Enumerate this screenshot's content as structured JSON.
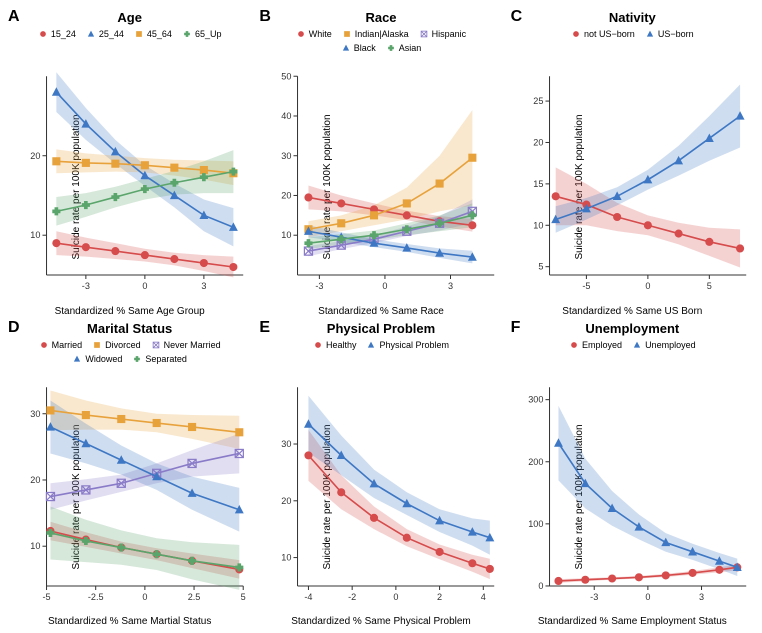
{
  "layout": {
    "rows": 2,
    "cols": 3
  },
  "common": {
    "ylabel": "Suicide rate per 100K population",
    "background_color": "#ffffff",
    "axis_color": "#333333",
    "title_fontsize": 13,
    "label_fontsize": 10,
    "tick_fontsize": 9,
    "legend_fontsize": 9,
    "line_width": 1.6,
    "marker_size": 4,
    "ribbon_opacity": 0.25,
    "colors": {
      "red": "#d64b4b",
      "blue": "#3e78c4",
      "orange": "#e8a23c",
      "green": "#5aa56b",
      "purple": "#8a7bc8"
    },
    "markers": {
      "circle": "●",
      "triangle": "▲",
      "square": "■",
      "cross": "✚",
      "boxcross": "⊠"
    }
  },
  "panels": [
    {
      "letter": "A",
      "title": "Age",
      "xlabel": "Standardized % Same Age Group",
      "xlim": [
        -5,
        5
      ],
      "xticks": [
        -3,
        0,
        3
      ],
      "ylim": [
        5,
        30
      ],
      "yticks": [
        10,
        20
      ],
      "series": [
        {
          "name": "15_24",
          "color": "red",
          "marker": "circle",
          "x": [
            -4.5,
            -3,
            -1.5,
            0,
            1.5,
            3,
            4.5
          ],
          "y": [
            9,
            8.5,
            8,
            7.5,
            7,
            6.5,
            6
          ],
          "ribbon": [
            1.5,
            1.2,
            1,
            0.8,
            0.8,
            1,
            1.3
          ]
        },
        {
          "name": "25_44",
          "color": "blue",
          "marker": "triangle",
          "x": [
            -4.5,
            -3,
            -1.5,
            0,
            1.5,
            3,
            4.5
          ],
          "y": [
            28,
            24,
            20.5,
            17.5,
            15,
            12.5,
            11
          ],
          "ribbon": [
            2.5,
            2,
            1.5,
            1.3,
            1.5,
            2,
            2.4
          ]
        },
        {
          "name": "45_64",
          "color": "orange",
          "marker": "square",
          "x": [
            -4.5,
            -3,
            -1.5,
            0,
            1.5,
            3,
            4.5
          ],
          "y": [
            19.3,
            19.1,
            19,
            18.8,
            18.5,
            18.2,
            17.8
          ],
          "ribbon": [
            1.5,
            1.2,
            1,
            0.9,
            1,
            1.2,
            1.5
          ]
        },
        {
          "name": "65_Up",
          "color": "green",
          "marker": "cross",
          "x": [
            -4.5,
            -3,
            -1.5,
            0,
            1.5,
            3,
            4.5
          ],
          "y": [
            13,
            13.8,
            14.8,
            15.8,
            16.6,
            17.3,
            18
          ],
          "ribbon": [
            1.8,
            1.5,
            1.3,
            1.3,
            1.5,
            2,
            2.7
          ]
        }
      ]
    },
    {
      "letter": "B",
      "title": "Race",
      "xlabel": "Standardized % Same Race",
      "xlim": [
        -4,
        5
      ],
      "xticks": [
        -3,
        0,
        3
      ],
      "ylim": [
        0,
        50
      ],
      "yticks": [
        10,
        20,
        30,
        40,
        50
      ],
      "series": [
        {
          "name": "White",
          "color": "red",
          "marker": "circle",
          "x": [
            -3.5,
            -2,
            -0.5,
            1,
            2.5,
            4
          ],
          "y": [
            19.5,
            18,
            16.5,
            15,
            13.5,
            12.5
          ],
          "ribbon": [
            3,
            2,
            1.5,
            1.2,
            1.3,
            1.6
          ]
        },
        {
          "name": "Indian|Alaska",
          "color": "orange",
          "marker": "square",
          "x": [
            -3.5,
            -2,
            -0.5,
            1,
            2.5,
            4
          ],
          "y": [
            11.5,
            13,
            15,
            18,
            23,
            29.5
          ],
          "ribbon": [
            2,
            2,
            2.5,
            4,
            7,
            12
          ]
        },
        {
          "name": "Hispanic",
          "color": "purple",
          "marker": "boxcross",
          "x": [
            -3.5,
            -2,
            -0.5,
            1,
            2.5,
            4
          ],
          "y": [
            6,
            7.5,
            9,
            11,
            13,
            16
          ],
          "ribbon": [
            1.3,
            1,
            1,
            1.2,
            1.8,
            3
          ]
        },
        {
          "name": "Black",
          "color": "blue",
          "marker": "triangle",
          "x": [
            -3.5,
            -2,
            -0.5,
            1,
            2.5,
            4
          ],
          "y": [
            11,
            9.5,
            8,
            6.8,
            5.5,
            4.5
          ],
          "ribbon": [
            1.5,
            1.2,
            1,
            1,
            1.2,
            1.6
          ]
        },
        {
          "name": "Asian",
          "color": "green",
          "marker": "cross",
          "x": [
            -3.5,
            -2,
            -0.5,
            1,
            2.5,
            4
          ],
          "y": [
            8,
            9,
            10,
            11.5,
            13,
            15
          ],
          "ribbon": [
            1.5,
            1.3,
            1.2,
            1.5,
            2,
            3
          ]
        }
      ]
    },
    {
      "letter": "C",
      "title": "Nativity",
      "xlabel": "Standardized % Same US Born",
      "xlim": [
        -8,
        8
      ],
      "xticks": [
        -5,
        0,
        5
      ],
      "ylim": [
        4,
        28
      ],
      "yticks": [
        5,
        10,
        15,
        20,
        25
      ],
      "series": [
        {
          "name": "not US−born",
          "color": "red",
          "marker": "circle",
          "x": [
            -7.5,
            -5,
            -2.5,
            0,
            2.5,
            5,
            7.5
          ],
          "y": [
            13.5,
            12.5,
            11,
            10,
            9,
            8,
            7.2
          ],
          "ribbon": [
            3.5,
            2.5,
            1.7,
            1.2,
            1.3,
            1.7,
            2.3
          ]
        },
        {
          "name": "US−born",
          "color": "blue",
          "marker": "triangle",
          "x": [
            -7.5,
            -5,
            -2.5,
            0,
            2.5,
            5,
            7.5
          ],
          "y": [
            10.7,
            12,
            13.5,
            15.5,
            17.8,
            20.5,
            23.2
          ],
          "ribbon": [
            1.6,
            1.3,
            1.1,
            1.2,
            1.8,
            2.7,
            3.8
          ]
        }
      ]
    },
    {
      "letter": "D",
      "title": "Marital Status",
      "xlabel": "Standardized % Same Martial Status",
      "xlim": [
        -5,
        5
      ],
      "xticks": [
        -5,
        -2.5,
        0,
        2.5,
        5
      ],
      "ylim": [
        4,
        34
      ],
      "yticks": [
        10,
        20,
        30
      ],
      "series": [
        {
          "name": "Married",
          "color": "red",
          "marker": "circle",
          "x": [
            -4.8,
            -3,
            -1.2,
            0.6,
            2.4,
            4.8
          ],
          "y": [
            12.3,
            11,
            9.8,
            8.8,
            7.8,
            6.5
          ],
          "ribbon": [
            1.4,
            1.1,
            0.9,
            0.9,
            1.1,
            1.4
          ]
        },
        {
          "name": "Divorced",
          "color": "orange",
          "marker": "square",
          "x": [
            -4.8,
            -3,
            -1.2,
            0.6,
            2.4,
            4.8
          ],
          "y": [
            30.5,
            29.8,
            29.2,
            28.6,
            28,
            27.2
          ],
          "ribbon": [
            3,
            2.2,
            1.6,
            1.4,
            1.8,
            2.5
          ]
        },
        {
          "name": "Never Married",
          "color": "purple",
          "marker": "boxcross",
          "x": [
            -4.8,
            -3,
            -1.2,
            0.6,
            2.4,
            4.8
          ],
          "y": [
            17.5,
            18.5,
            19.5,
            21,
            22.5,
            24
          ],
          "ribbon": [
            2,
            1.6,
            1.3,
            1.5,
            2,
            3
          ]
        },
        {
          "name": "Widowed",
          "color": "blue",
          "marker": "triangle",
          "x": [
            -4.8,
            -3,
            -1.2,
            0.6,
            2.4,
            4.8
          ],
          "y": [
            28,
            25.5,
            23,
            20.5,
            18,
            15.5
          ],
          "ribbon": [
            4,
            3,
            2.2,
            2,
            2.5,
            3.3
          ]
        },
        {
          "name": "Separated",
          "color": "green",
          "marker": "cross",
          "x": [
            -4.8,
            -3,
            -1.2,
            0.6,
            2.4,
            4.8
          ],
          "y": [
            12,
            10.8,
            9.8,
            8.8,
            7.8,
            6.8
          ],
          "ribbon": [
            4,
            3.2,
            2.6,
            2.4,
            2.8,
            3.4
          ]
        }
      ]
    },
    {
      "letter": "E",
      "title": "Physical Problem",
      "xlabel": "Standardized % Same Physical Problem",
      "xlim": [
        -4.5,
        4.5
      ],
      "xticks": [
        -4,
        -2,
        0,
        2,
        4
      ],
      "ylim": [
        5,
        40
      ],
      "yticks": [
        10,
        20,
        30
      ],
      "series": [
        {
          "name": "Healthy",
          "color": "red",
          "marker": "circle",
          "x": [
            -4,
            -2.5,
            -1,
            0.5,
            2,
            3.5,
            4.3
          ],
          "y": [
            28,
            21.5,
            17,
            13.5,
            11,
            9,
            8
          ],
          "ribbon": [
            4.5,
            3,
            2,
            1.5,
            1.3,
            1.5,
            1.8
          ]
        },
        {
          "name": "Physical Problem",
          "color": "blue",
          "marker": "triangle",
          "x": [
            -4,
            -2.5,
            -1,
            0.5,
            2,
            3.5,
            4.3
          ],
          "y": [
            33.5,
            28,
            23,
            19.5,
            16.5,
            14.5,
            13.5
          ],
          "ribbon": [
            5,
            3.5,
            2.5,
            2,
            2,
            2.4,
            3
          ]
        }
      ]
    },
    {
      "letter": "F",
      "title": "Unemployment",
      "xlabel": "Standardized % Same Employment Status",
      "xlim": [
        -5.5,
        5.5
      ],
      "xticks": [
        -3,
        0,
        3
      ],
      "ylim": [
        0,
        320
      ],
      "yticks": [
        0,
        100,
        200,
        300
      ],
      "series": [
        {
          "name": "Employed",
          "color": "red",
          "marker": "circle",
          "x": [
            -5,
            -3.5,
            -2,
            -0.5,
            1,
            2.5,
            4,
            5
          ],
          "y": [
            8,
            10,
            12,
            14,
            17,
            21,
            26,
            30
          ],
          "ribbon": [
            3,
            2.5,
            2,
            2,
            2.5,
            3,
            4,
            5
          ]
        },
        {
          "name": "Unemployed",
          "color": "blue",
          "marker": "triangle",
          "x": [
            -5,
            -3.5,
            -2,
            -0.5,
            1,
            2.5,
            4,
            5
          ],
          "y": [
            230,
            165,
            125,
            95,
            70,
            55,
            40,
            30
          ],
          "ribbon": [
            60,
            40,
            28,
            20,
            15,
            13,
            13,
            14
          ]
        }
      ]
    }
  ]
}
